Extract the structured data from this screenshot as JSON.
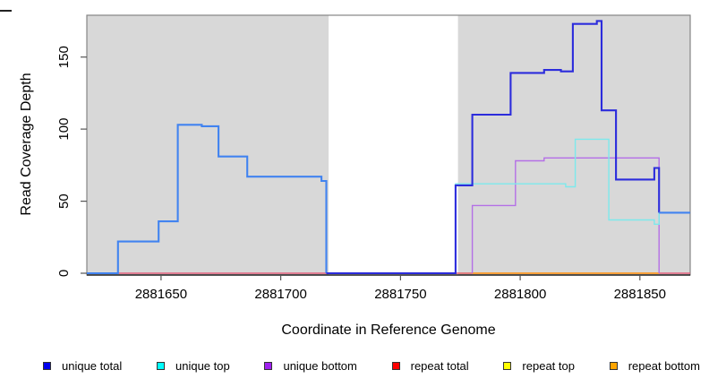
{
  "figure": {
    "y_axis_label": "Read Coverage Depth",
    "x_axis_label": "Coordinate in Reference Genome"
  },
  "legend": {
    "items": [
      {
        "label": "unique total",
        "color": "#0000EE"
      },
      {
        "label": "unique top",
        "color": "#00FFFF"
      },
      {
        "label": "unique bottom",
        "color": "#A020F0"
      },
      {
        "label": "repeat total",
        "color": "#FF0000"
      },
      {
        "label": "repeat top",
        "color": "#FFFF00"
      },
      {
        "label": "repeat bottom",
        "color": "#FFA500"
      }
    ]
  },
  "chart_data": {
    "type": "line",
    "subtype": "step",
    "title": "",
    "xlabel": "Coordinate in Reference Genome",
    "ylabel": "Read Coverage Depth",
    "xlim": [
      2881619,
      2881871
    ],
    "ylim": [
      0,
      179
    ],
    "xticks": [
      2881650,
      2881700,
      2881750,
      2881800,
      2881850
    ],
    "yticks": [
      0,
      50,
      100,
      150
    ],
    "grid": false,
    "legend_position": "bottom",
    "panel_color": "#D8D8D8",
    "border_color": "#858585",
    "shaded_regions": [
      [
        2881619,
        2881720
      ],
      [
        2881774,
        2881871
      ]
    ],
    "series": [
      {
        "name": "repeat top",
        "legend_color": "#FFFF00",
        "segments": [
          {
            "color": "#F0E040",
            "width": 1.4,
            "points": [
              [
                2881774,
                0
              ],
              [
                2881858,
                0
              ]
            ]
          }
        ]
      },
      {
        "name": "repeat total",
        "legend_color": "#FF0000",
        "segments": [
          {
            "color": "#E2607E",
            "width": 1.5,
            "points": [
              [
                2881619,
                0
              ],
              [
                2881871,
                0
              ]
            ]
          }
        ]
      },
      {
        "name": "repeat bottom",
        "legend_color": "#FFA500",
        "segments": [
          {
            "color": "#FFA022",
            "width": 1.6,
            "points": [
              [
                2881780,
                0
              ],
              [
                2881858,
                0
              ]
            ]
          }
        ]
      },
      {
        "name": "unique bottom",
        "legend_color": "#A020F0",
        "segments": [
          {
            "color": "#B46FE6",
            "width": 1.4,
            "points": [
              [
                2881780,
                0
              ],
              [
                2881780,
                47
              ],
              [
                2881798,
                78
              ],
              [
                2881810,
                80
              ],
              [
                2881858,
                0
              ]
            ]
          }
        ]
      },
      {
        "name": "unique top",
        "legend_color": "#00FFFF",
        "segments": [
          {
            "color": "#7DE9EC",
            "width": 1.4,
            "points": [
              [
                2881773,
                0
              ],
              [
                2881773,
                62
              ],
              [
                2881819,
                60
              ],
              [
                2881823,
                93
              ],
              [
                2881837,
                37
              ],
              [
                2881856,
                34
              ],
              [
                2881858,
                42
              ],
              [
                2881871,
                42
              ]
            ]
          }
        ]
      },
      {
        "name": "unique total",
        "legend_color": "#0000EE",
        "segments": [
          {
            "color": "#4183F0",
            "width": 2.1,
            "points": [
              [
                2881619,
                0
              ],
              [
                2881632,
                22
              ],
              [
                2881649,
                36
              ],
              [
                2881657,
                103
              ],
              [
                2881667,
                102
              ],
              [
                2881674,
                81
              ],
              [
                2881686,
                67
              ],
              [
                2881717,
                64
              ],
              [
                2881719,
                0
              ]
            ]
          },
          {
            "color": "#2C2CDC",
            "width": 2.1,
            "points": [
              [
                2881719,
                0
              ],
              [
                2881773,
                61
              ],
              [
                2881780,
                110
              ],
              [
                2881796,
                139
              ],
              [
                2881810,
                141
              ],
              [
                2881817,
                140
              ],
              [
                2881822,
                173
              ],
              [
                2881832,
                175
              ],
              [
                2881834,
                113
              ],
              [
                2881840,
                65
              ],
              [
                2881856,
                73
              ],
              [
                2881858,
                42
              ]
            ]
          },
          {
            "color": "#4183F0",
            "width": 2.1,
            "points": [
              [
                2881858,
                42
              ],
              [
                2881871,
                42
              ]
            ]
          }
        ]
      }
    ]
  }
}
